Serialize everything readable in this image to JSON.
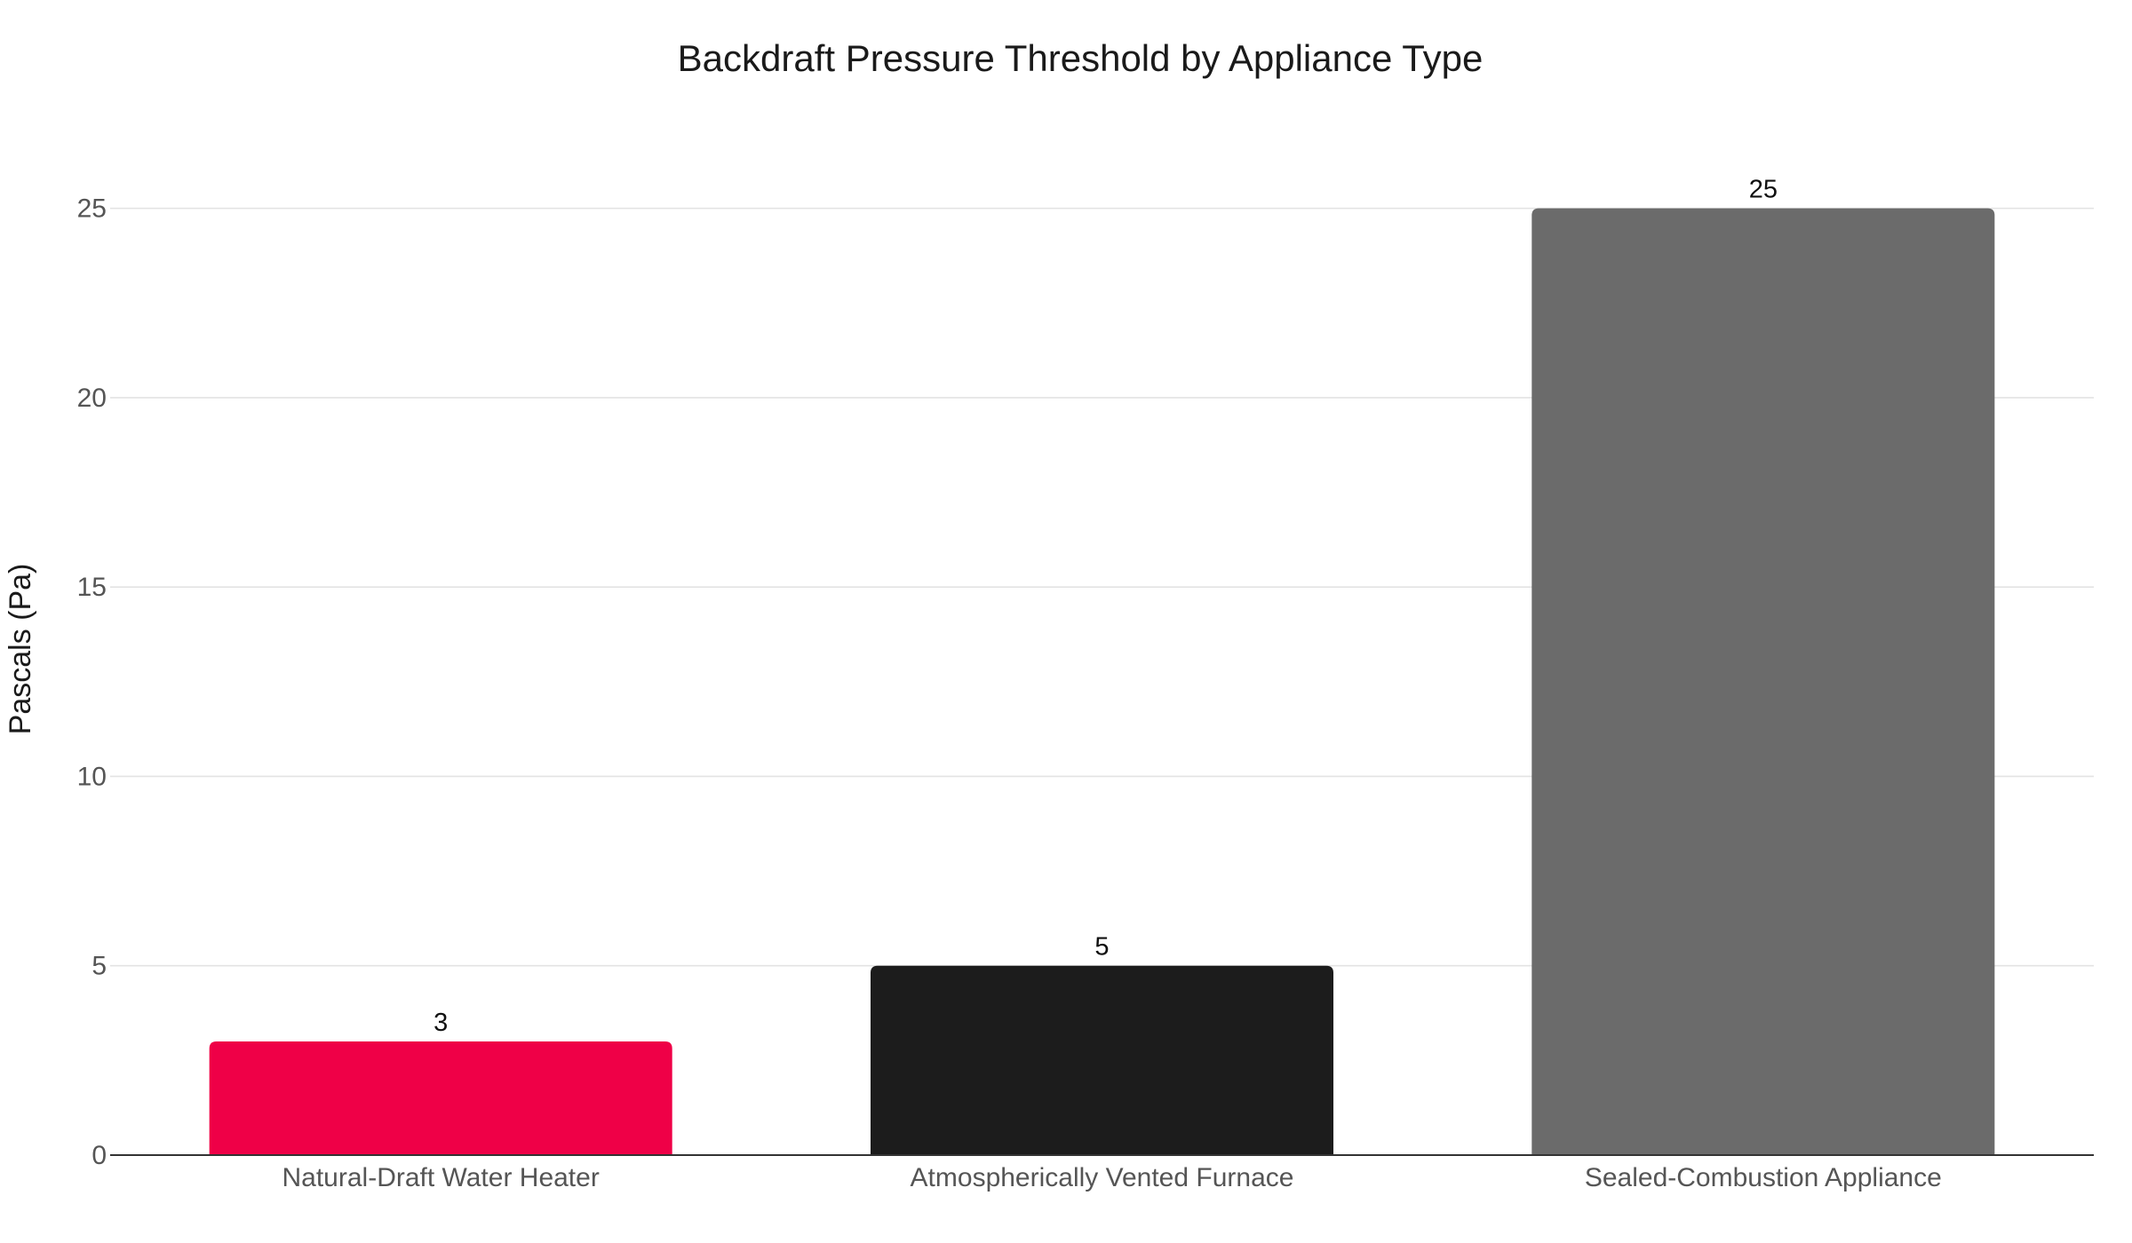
{
  "chart_data": {
    "type": "bar",
    "title": "Backdraft Pressure Threshold by Appliance Type",
    "xlabel": "",
    "ylabel": "Pascals (Pa)",
    "categories": [
      "Natural-Draft Water Heater",
      "Atmospherically Vented Furnace",
      "Sealed-Combustion Appliance"
    ],
    "values": [
      3,
      5,
      25
    ],
    "data_labels": [
      "3",
      "5",
      "25"
    ],
    "colors": [
      "#ef0047",
      "#1c1c1c",
      "#6b6b6b"
    ],
    "ylim": [
      0,
      27.5
    ],
    "yticks": [
      0,
      5,
      10,
      15,
      20,
      25
    ],
    "grid": true,
    "legend": "none"
  }
}
